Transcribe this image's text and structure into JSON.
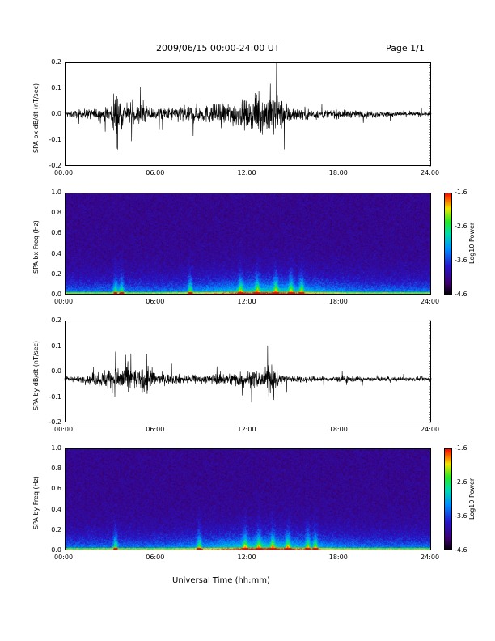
{
  "header": {
    "title": "2009/06/15  00:00-24:00 UT",
    "page": "Page 1/1"
  },
  "xaxis": {
    "label": "Universal Time (hh:mm)",
    "ticks": [
      "00:00",
      "06:00",
      "12:00",
      "18:00",
      "24:00"
    ]
  },
  "colorbar": {
    "label": "Log10 Power",
    "ticks": [
      "-1.6",
      "-2.6",
      "-3.6",
      "-4.6"
    ]
  },
  "chart_data": [
    {
      "type": "line",
      "ylabel": "SPA bx dB/dt (nT/sec)",
      "xlim": [
        0,
        24
      ],
      "ylim": [
        -0.2,
        0.2
      ],
      "yticks": [
        "0.2",
        "0.1",
        "0.0",
        "-0.1",
        "-0.2"
      ],
      "x_ticks": [
        "00:00",
        "06:00",
        "12:00",
        "18:00",
        "24:00"
      ],
      "series": [
        {
          "x": [
            0,
            1,
            2,
            3,
            3.3,
            4,
            5,
            6,
            7,
            8,
            9,
            10,
            11,
            12,
            12.5,
            13,
            13.5,
            14,
            15,
            16,
            17,
            18,
            19,
            20,
            21,
            22,
            23,
            24
          ],
          "amp": [
            0.02,
            0.03,
            0.04,
            0.05,
            0.2,
            0.06,
            0.08,
            0.04,
            0.05,
            0.07,
            0.06,
            0.07,
            0.09,
            0.1,
            0.12,
            0.14,
            0.2,
            0.12,
            0.05,
            0.04,
            0.03,
            0.03,
            0.025,
            0.025,
            0.02,
            0.02,
            0.015,
            0.015
          ]
        }
      ]
    },
    {
      "type": "heatmap",
      "ylabel": "SPA bx Freq (Hz)",
      "xlim": [
        0,
        24
      ],
      "ylim": [
        0,
        1.0
      ],
      "yticks": [
        "1.0",
        "0.8",
        "0.6",
        "0.4",
        "0.2",
        "0.0"
      ],
      "x_ticks": [
        "00:00",
        "06:00",
        "12:00",
        "18:00",
        "24:00"
      ],
      "zlim": [
        -4.6,
        -1.6
      ]
    },
    {
      "type": "line",
      "ylabel": "SPA by dB/dt (nT/sec)",
      "xlim": [
        0,
        24
      ],
      "ylim": [
        -0.2,
        0.2
      ],
      "yticks": [
        "0.2",
        "0.1",
        "0.0",
        "-0.1",
        "-0.2"
      ],
      "x_ticks": [
        "00:00",
        "06:00",
        "12:00",
        "18:00",
        "24:00"
      ],
      "series": [
        {
          "x": [
            0,
            1,
            2,
            3,
            4,
            5,
            5.2,
            6,
            7,
            8,
            9,
            10,
            11,
            12,
            13,
            13.5,
            14,
            15,
            16,
            17,
            18,
            19,
            20,
            21,
            22,
            23,
            24
          ],
          "amp": [
            0.02,
            0.02,
            0.05,
            0.08,
            0.12,
            0.05,
            0.16,
            0.04,
            0.04,
            0.03,
            0.03,
            0.04,
            0.05,
            0.06,
            0.06,
            0.12,
            0.04,
            0.03,
            0.02,
            0.02,
            0.02,
            0.02,
            0.015,
            0.015,
            0.015,
            0.015,
            0.015
          ],
          "offset": -0.03
        }
      ]
    },
    {
      "type": "heatmap",
      "ylabel": "SPA by Freq (Hz)",
      "xlim": [
        0,
        24
      ],
      "ylim": [
        0,
        1.0
      ],
      "yticks": [
        "1.0",
        "0.8",
        "0.6",
        "0.4",
        "0.2",
        "0.0"
      ],
      "x_ticks": [
        "00:00",
        "06:00",
        "12:00",
        "18:00",
        "24:00"
      ],
      "zlim": [
        -4.6,
        -1.6
      ]
    }
  ]
}
